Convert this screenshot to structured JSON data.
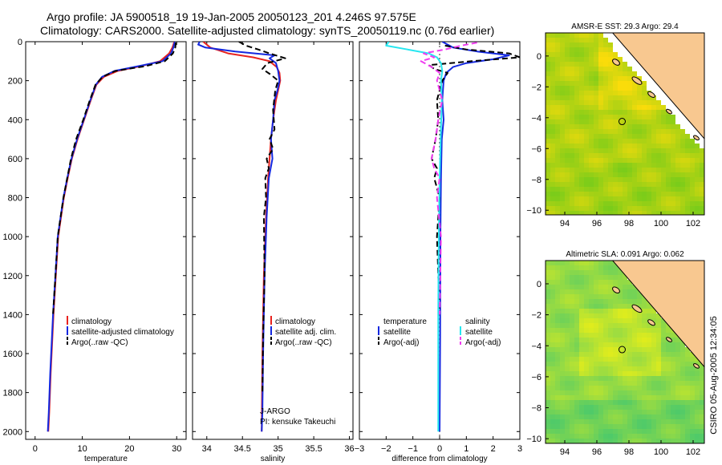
{
  "header": {
    "line1": "Argo profile: JA 5900518_19 19-Jan-2005 20050123_201 4.246S 97.575E",
    "line2": "Climatology: CARS2000. Satellite-adjusted climatology: synTS_20050119.nc (0.76d earlier)"
  },
  "footer": {
    "credit": "CSIRO 05-Aug-2005 12:34:05"
  },
  "colors": {
    "climatology": "#e8231f",
    "satellite": "#1428e0",
    "argo": "#000000",
    "sal_satellite": "#26e6f0",
    "sal_argo": "#f03cf0",
    "land": "#f8c890",
    "float_marker": "#000000"
  },
  "chart_data": [
    {
      "id": "temperature",
      "type": "line",
      "xlabel": "temperature",
      "xlim": [
        -2,
        32
      ],
      "ylim": [
        2040,
        0
      ],
      "xticks": [
        0,
        10,
        20,
        30
      ],
      "yticks": [
        0,
        200,
        400,
        600,
        800,
        1000,
        1200,
        1400,
        1600,
        1800,
        2000
      ],
      "legend_placement": "lower-center",
      "series": [
        {
          "name": "climatology",
          "style": "solid",
          "color": "#e8231f",
          "x": [
            29.5,
            29.1,
            28.4,
            26.5,
            22.5,
            17.5,
            14.6,
            13.0,
            11.8,
            10.4,
            9.0,
            7.8,
            6.9,
            6.1,
            5.5,
            4.9,
            4.4,
            3.9,
            3.3,
            3.0,
            2.8
          ],
          "y": [
            0,
            30,
            60,
            100,
            125,
            150,
            180,
            220,
            300,
            400,
            500,
            600,
            700,
            800,
            900,
            1000,
            1200,
            1400,
            1700,
            1900,
            2000
          ]
        },
        {
          "name": "satellite-adjusted climatology",
          "style": "solid",
          "color": "#1428e0",
          "x": [
            29.6,
            29.3,
            28.8,
            27.0,
            22.0,
            16.8,
            14.2,
            12.9,
            11.7,
            10.3,
            8.9,
            7.7,
            6.8,
            6.0,
            5.4,
            4.8,
            4.3,
            3.8,
            3.2,
            2.9,
            2.7
          ],
          "y": [
            0,
            30,
            60,
            100,
            125,
            150,
            180,
            220,
            300,
            400,
            500,
            600,
            700,
            800,
            900,
            1000,
            1200,
            1400,
            1700,
            1900,
            2000
          ]
        },
        {
          "name": "Argo(..raw -QC)",
          "style": "dashed",
          "color": "#000000",
          "x": [
            29.8,
            29.7,
            29.2,
            27.5,
            23.5,
            17.0,
            14.3,
            12.8,
            11.6,
            10.2,
            8.7,
            7.6,
            6.8,
            6.0,
            5.4,
            4.8,
            4.3,
            3.8
          ],
          "y": [
            5,
            30,
            60,
            100,
            125,
            150,
            180,
            220,
            300,
            400,
            500,
            600,
            700,
            800,
            900,
            1000,
            1200,
            1400
          ]
        }
      ]
    },
    {
      "id": "salinity",
      "type": "line",
      "xlabel": "salinity",
      "xlim": [
        33.8,
        36.05
      ],
      "ylim": [
        2040,
        0
      ],
      "xticks": [
        34,
        34.5,
        35,
        35.5,
        36
      ],
      "legend_placement": "lower-center",
      "annotations": [
        "J-ARGO",
        "PI: kensuke Takeuchi"
      ],
      "series": [
        {
          "name": "climatology",
          "style": "solid",
          "color": "#e8231f",
          "x": [
            33.95,
            34.05,
            34.3,
            34.65,
            34.88,
            34.98,
            35.02,
            35.03,
            35.0,
            34.97,
            34.93,
            34.9,
            34.86,
            34.83,
            34.8,
            34.78,
            34.77
          ],
          "y": [
            0,
            30,
            60,
            80,
            100,
            130,
            160,
            200,
            250,
            300,
            400,
            500,
            700,
            900,
            1200,
            1600,
            2000
          ]
        },
        {
          "name": "satellite adj. clim.",
          "style": "solid",
          "color": "#1428e0",
          "x": [
            33.9,
            33.88,
            33.98,
            34.4,
            34.95,
            34.88,
            34.97,
            35.0,
            35.02,
            34.99,
            34.95,
            34.93,
            34.9,
            34.92,
            34.87,
            34.84,
            34.81,
            34.79,
            34.78,
            34.77
          ],
          "y": [
            0,
            15,
            30,
            50,
            70,
            85,
            110,
            150,
            200,
            250,
            300,
            400,
            500,
            600,
            700,
            900,
            1200,
            1600,
            1900,
            2000
          ]
        },
        {
          "name": "Argo(..raw -QC)",
          "style": "dashed",
          "color": "#000000",
          "x": [
            34.45,
            34.55,
            34.72,
            34.88,
            35.1,
            34.85,
            34.78,
            34.9,
            35.0,
            34.96,
            34.93,
            34.95,
            34.88,
            34.93,
            34.84,
            34.87,
            34.82,
            34.83,
            34.8,
            34.81,
            34.79,
            34.78
          ],
          "y": [
            0,
            20,
            40,
            60,
            85,
            110,
            140,
            170,
            200,
            250,
            350,
            450,
            500,
            550,
            600,
            650,
            700,
            800,
            900,
            1200,
            1500,
            1800
          ]
        }
      ]
    },
    {
      "id": "difference",
      "type": "line",
      "xlabel": "difference from climatology",
      "xlim": [
        -3,
        3
      ],
      "ylim": [
        2040,
        0
      ],
      "xticks": [
        -3,
        -2,
        -1,
        0,
        1,
        2,
        3
      ],
      "legend_placement": "lower-center",
      "legend_titles": [
        "temperature",
        "salinity"
      ],
      "series": [
        {
          "name": "satellite",
          "group": "temperature",
          "style": "solid",
          "color": "#1428e0",
          "x": [
            0.1,
            0.5,
            1.4,
            2.6,
            2.0,
            1.0,
            0.5,
            0.25,
            0.15,
            0.1,
            0.15,
            0.08,
            0.05,
            0.03,
            0.02,
            0.0
          ],
          "y": [
            0,
            30,
            50,
            70,
            90,
            110,
            130,
            160,
            200,
            300,
            400,
            500,
            700,
            1000,
            1500,
            2000
          ]
        },
        {
          "name": "Argo(-adj)",
          "group": "temperature",
          "style": "dashed",
          "color": "#000000",
          "x": [
            0.2,
            1.0,
            2.6,
            3.0,
            1.2,
            -0.4,
            -0.2,
            0.3,
            0.1,
            -0.1,
            -0.05,
            -0.15,
            -0.3,
            -0.1,
            -0.2,
            0.0,
            -0.1,
            0.0
          ],
          "y": [
            20,
            40,
            60,
            80,
            100,
            120,
            140,
            160,
            200,
            300,
            400,
            500,
            600,
            650,
            700,
            800,
            1000,
            1400
          ]
        },
        {
          "name": "satellite",
          "group": "salinity",
          "style": "solid",
          "color": "#26e6f0",
          "x": [
            -1.9,
            -2.0,
            -1.2,
            -0.4,
            -0.1,
            0.05,
            0.1,
            0.05,
            0.08,
            0.04,
            0.0,
            -0.02,
            -0.04,
            -0.05,
            -0.05,
            -0.05
          ],
          "y": [
            0,
            20,
            40,
            60,
            80,
            110,
            150,
            200,
            300,
            500,
            700,
            900,
            1100,
            1400,
            1800,
            2000
          ]
        },
        {
          "name": "Argo(-adj)",
          "group": "salinity",
          "style": "dashed",
          "color": "#f03cf0",
          "x": [
            1.4,
            0.8,
            0.2,
            -0.6,
            -0.2,
            -0.7,
            -0.3,
            0.0,
            -0.1,
            0.1,
            -0.05,
            -0.15,
            -0.3,
            -0.2,
            0.0,
            -0.1,
            0.05,
            0.0
          ],
          "y": [
            5,
            20,
            40,
            60,
            80,
            100,
            130,
            160,
            200,
            300,
            400,
            500,
            600,
            650,
            700,
            800,
            1000,
            1400
          ]
        }
      ]
    },
    {
      "id": "sst-map",
      "type": "heatmap",
      "title": "AMSR-E SST: 29.3 Argo: 29.4",
      "xlim": [
        92.8,
        102.7
      ],
      "ylim": [
        -10.3,
        1.5
      ],
      "xticks": [
        94,
        96,
        98,
        100,
        102
      ],
      "xtick_labels": [
        "94",
        "96",
        "98",
        "100",
        "102"
      ],
      "yticks": [
        0,
        -2,
        -4,
        -6,
        -8,
        -10
      ],
      "ytick_labels": [
        "0",
        "−2",
        "−4",
        "−6",
        "−8",
        "−10"
      ],
      "float_position": {
        "lon": 97.575,
        "lat": -4.246
      }
    },
    {
      "id": "sla-map",
      "type": "heatmap",
      "title": "Altimetric SLA: 0.091 Argo: 0.062",
      "xlim": [
        92.8,
        102.7
      ],
      "ylim": [
        -10.3,
        1.5
      ],
      "xticks": [
        94,
        96,
        98,
        100,
        102
      ],
      "xtick_labels": [
        "94",
        "96",
        "98",
        "100",
        "102"
      ],
      "yticks": [
        0,
        -2,
        -4,
        -6,
        -8,
        -10
      ],
      "ytick_labels": [
        "0",
        "−2",
        "−4",
        "−6",
        "−8",
        "−10"
      ],
      "float_position": {
        "lon": 97.575,
        "lat": -4.246
      }
    }
  ]
}
